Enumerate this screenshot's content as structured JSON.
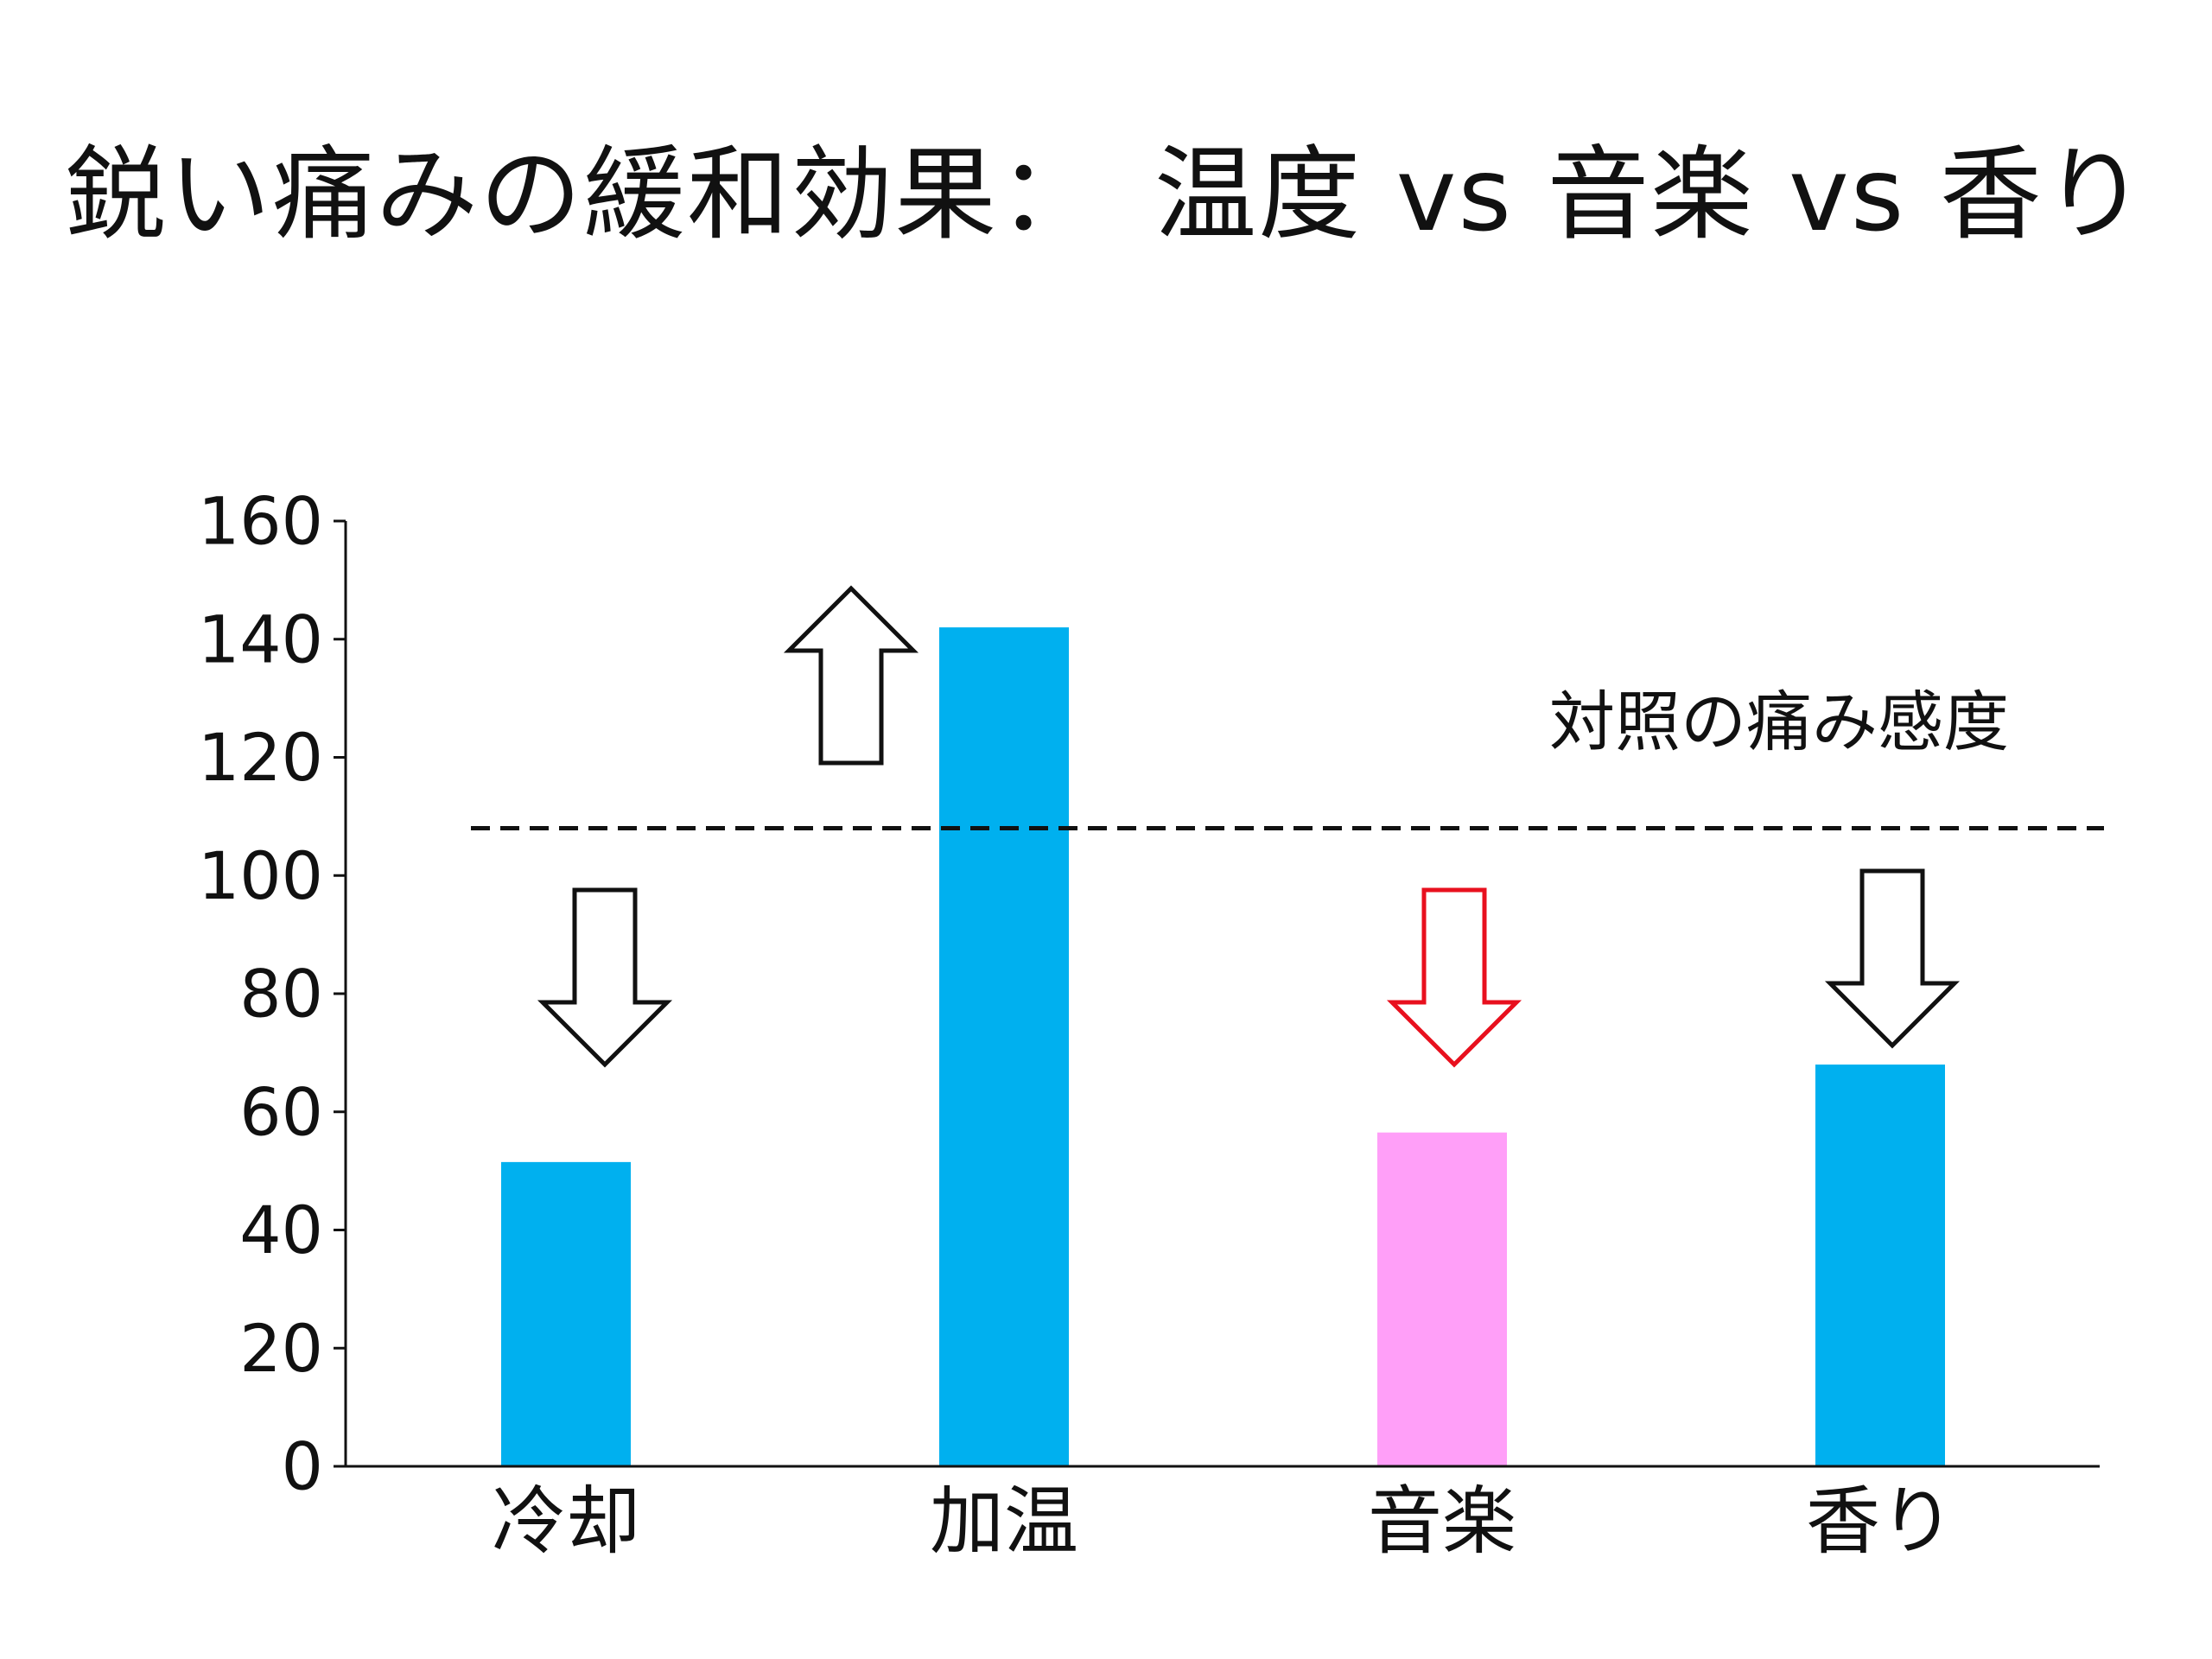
{
  "slide": {
    "title": "鋭い痛みの緩和効果：　温度 vs 音楽 vs 香り"
  },
  "chart_data": {
    "type": "bar",
    "title": "鋭い痛みの緩和効果：　温度 vs 音楽 vs 香り",
    "categories": [
      "冷却",
      "加温",
      "音楽",
      "香り"
    ],
    "values": [
      51.5,
      142,
      56.5,
      68
    ],
    "bar_colors": [
      "#00b0ef",
      "#00b0ef",
      "#ff9ff8",
      "#00b0ef"
    ],
    "ylim": [
      0,
      160
    ],
    "yticks": [
      0,
      20,
      40,
      60,
      80,
      100,
      120,
      140,
      160
    ],
    "xlabel": "",
    "ylabel": "",
    "grid": false,
    "reference_line": {
      "value": 108,
      "label": "対照の痛み感度",
      "style": "dashed",
      "color": "#111111"
    },
    "arrows": [
      {
        "category": "冷却",
        "direction": "down",
        "color": "#111111"
      },
      {
        "category": "加温",
        "direction": "up",
        "color": "#111111"
      },
      {
        "category": "音楽",
        "direction": "down",
        "color": "#e8101e"
      },
      {
        "category": "香り",
        "direction": "down",
        "color": "#111111"
      }
    ]
  }
}
